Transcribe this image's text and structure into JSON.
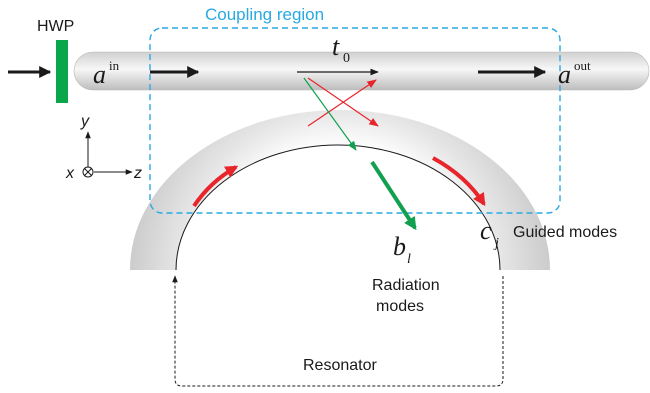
{
  "labels": {
    "hwp": "HWP",
    "coupling_region": "Coupling region",
    "a_in_base": "a",
    "a_in_sup": "in",
    "a_out_base": "a",
    "a_out_sup": "out",
    "t0_base": "t",
    "t0_sub": "0",
    "b_base": "b",
    "b_sub": "l",
    "c_base": "c",
    "c_sub": "j",
    "guided_modes": "Guided modes",
    "radiation_line1": "Radiation",
    "radiation_line2": "modes",
    "resonator": "Resonator",
    "axis_y": "y",
    "axis_x": "x",
    "axis_z": "z"
  },
  "colors": {
    "coupling_box": "#29a9e1",
    "hwp": "#0aa64a",
    "radiation_arrow": "#11a050",
    "guided_arrow": "#e8252b",
    "waveguide_light": "#f4f4f4",
    "waveguide_dark": "#c6c6c6",
    "text": "#1a1a1a"
  }
}
